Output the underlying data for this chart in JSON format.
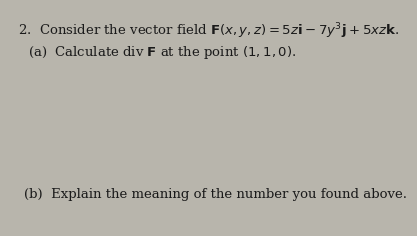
{
  "background_color": "#b8b5ac",
  "question_number": "2.",
  "line1": "Consider the vector field $\\mathbf{F}(x, y, z) = 5z\\mathbf{i} - 7y^{3}\\mathbf{j} + 5xz\\mathbf{k}$.",
  "line2_label": "(a)",
  "line2_text": "Calculate div $\\mathbf{F}$ at the point $(1, 1, 0)$.",
  "line3_label": "(b)",
  "line3_text": "Explain the meaning of the number you found above.",
  "font_size_main": 9.5,
  "font_size_sub": 9.5,
  "text_color": "#1a1a1a"
}
